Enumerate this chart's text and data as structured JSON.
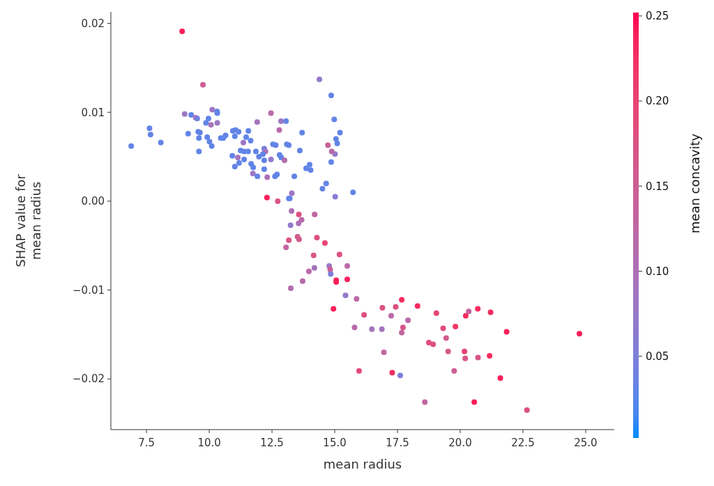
{
  "chart_data": {
    "type": "scatter",
    "xlabel": "mean radius",
    "ylabel": "SHAP value for\nmean radius",
    "clabel": "mean concavity",
    "xlim": [
      6.08,
      26.14
    ],
    "ylim": [
      -0.0257,
      0.0213
    ],
    "xticks": [
      7.5,
      {
        "value": 10,
        "label": "10.0"
      },
      12.5,
      {
        "value": 15,
        "label": "15.0"
      },
      17.5,
      {
        "value": 20,
        "label": "20.0"
      },
      22.5,
      {
        "value": 25,
        "label": "25.0"
      }
    ],
    "yticks": [
      {
        "value": -0.02,
        "label": "−0.02"
      },
      {
        "value": -0.01,
        "label": "−0.01"
      },
      {
        "value": 0,
        "label": "0.00"
      },
      0.01,
      0.02
    ],
    "clim": [
      0.002,
      0.252
    ],
    "cticks": [
      0.05,
      {
        "value": 0.1,
        "label": "0.10"
      },
      0.15,
      {
        "value": 0.2,
        "label": "0.20"
      },
      0.25
    ],
    "grid": false,
    "x": [
      9.75,
      14.39,
      14.86,
      9.02,
      9.28,
      9.46,
      9.52,
      10.12,
      10.31,
      10.32,
      9.97,
      9.87,
      10.07,
      10.32,
      7.62,
      7.66,
      8.07,
      6.89,
      9.16,
      9.56,
      9.63,
      9.59,
      9.59,
      9.92,
      10.01,
      10.1,
      10.46,
      10.56,
      10.65,
      10.94,
      11.05,
      11.17,
      11.02,
      11.56,
      11.47,
      11.65,
      11.36,
      11.25,
      11.39,
      11.55,
      10.92,
      11.14,
      11.02,
      11.19,
      11.39,
      11.67,
      11.75,
      11.74,
      11.92,
      11.86,
      11.98,
      12.19,
      12.24,
      12.14,
      12.19,
      12.19,
      12.46,
      12.31,
      12.62,
      12.7,
      12.8,
      12.87,
      13.0,
      12.46,
      11.91,
      12.86,
      13.06,
      12.79,
      12.54,
      12.65,
      13.09,
      13.17,
      13.61,
      13.7,
      13.39,
      13.86,
      14.0,
      14.04,
      14.66,
      14.51,
      13.29,
      13.21,
      13.17,
      12.3,
      12.73,
      15.02,
      15.01,
      14.73,
      14.88,
      14.86,
      14.98,
      15.21,
      15.05,
      15.1,
      8.92,
      15.73,
      13.28,
      13.57,
      13.68,
      13.56,
      14.2,
      13.24,
      13.17,
      13.52,
      13.58,
      13.06,
      14.29,
      14.61,
      14.16,
      15.19,
      14.78,
      14.82,
      14.84,
      15.5,
      14.19,
      13.97,
      13.72,
      13.25,
      15.06,
      15.06,
      15.5,
      15.43,
      15.87,
      14.95,
      16.17,
      16.9,
      17.43,
      17.67,
      18.3,
      17.25,
      17.92,
      19.05,
      15.79,
      16.48,
      16.88,
      17.72,
      17.67,
      19.32,
      19.81,
      19.44,
      20.22,
      20.34,
      20.7,
      21.21,
      21.85,
      24.75,
      18.75,
      18.92,
      19.52,
      20.17,
      20.2,
      20.71,
      21.17,
      16.96,
      15.97,
      17.29,
      17.61,
      19.76,
      21.6,
      18.59,
      20.56,
      22.66
    ],
    "values": [
      0.0131,
      0.0137,
      0.0119,
      0.0098,
      0.0097,
      0.0094,
      0.0093,
      0.0103,
      0.0101,
      0.0099,
      0.0093,
      0.0088,
      0.0086,
      0.0088,
      0.0082,
      0.0075,
      0.0066,
      0.0062,
      0.0076,
      0.0078,
      0.0077,
      0.0071,
      0.0056,
      0.0072,
      0.0067,
      0.0062,
      0.0071,
      0.0071,
      0.0074,
      0.0079,
      0.008,
      0.0078,
      0.0073,
      0.0079,
      0.0072,
      0.0068,
      0.0066,
      0.0057,
      0.0056,
      0.0056,
      0.0051,
      0.0049,
      0.0039,
      0.0043,
      0.0047,
      0.0042,
      0.0038,
      0.0031,
      0.0028,
      0.0056,
      0.005,
      0.0059,
      0.0056,
      0.0053,
      0.0046,
      0.0036,
      0.0047,
      0.0027,
      0.0028,
      0.003,
      0.0052,
      0.0049,
      0.0046,
      0.0099,
      0.0089,
      0.009,
      0.009,
      0.008,
      0.0064,
      0.0063,
      0.0064,
      0.0063,
      0.0057,
      0.0077,
      0.0028,
      0.0037,
      0.0041,
      0.0035,
      0.002,
      0.0014,
      0.0009,
      0.0003,
      0.0003,
      0.0004,
      0.0,
      0.0005,
      0.0053,
      0.0063,
      0.0056,
      0.0044,
      0.0092,
      0.0077,
      0.007,
      0.0065,
      0.0191,
      0.001,
      -0.0011,
      -0.0015,
      -0.0021,
      -0.0025,
      -0.0015,
      -0.0027,
      -0.0044,
      -0.004,
      -0.0043,
      -0.0052,
      -0.0041,
      -0.0047,
      -0.0061,
      -0.006,
      -0.0073,
      -0.0077,
      -0.0082,
      -0.0073,
      -0.0075,
      -0.0079,
      -0.009,
      -0.0098,
      -0.0089,
      -0.0091,
      -0.0088,
      -0.0106,
      -0.011,
      -0.0121,
      -0.0128,
      -0.012,
      -0.0119,
      -0.0111,
      -0.0118,
      -0.0129,
      -0.0134,
      -0.0126,
      -0.0142,
      -0.0144,
      -0.0144,
      -0.0142,
      -0.0148,
      -0.0143,
      -0.0141,
      -0.0154,
      -0.0129,
      -0.0124,
      -0.0121,
      -0.0125,
      -0.0147,
      -0.0149,
      -0.0159,
      -0.0161,
      -0.0169,
      -0.0169,
      -0.0177,
      -0.0176,
      -0.0174,
      -0.017,
      -0.0191,
      -0.0193,
      -0.0196,
      -0.0191,
      -0.0199,
      -0.0226,
      -0.0226,
      -0.0235
    ],
    "cvalues": [
      0.15,
      0.07,
      0.03,
      0.08,
      0.03,
      0.11,
      0.04,
      0.08,
      0.03,
      0.03,
      0.03,
      0.03,
      0.09,
      0.08,
      0.03,
      0.03,
      0.03,
      0.03,
      0.03,
      0.03,
      0.03,
      0.03,
      0.03,
      0.03,
      0.03,
      0.03,
      0.03,
      0.03,
      0.03,
      0.03,
      0.03,
      0.03,
      0.03,
      0.03,
      0.03,
      0.03,
      0.08,
      0.03,
      0.03,
      0.03,
      0.03,
      0.09,
      0.03,
      0.03,
      0.03,
      0.03,
      0.03,
      0.08,
      0.03,
      0.03,
      0.03,
      0.04,
      0.1,
      0.03,
      0.03,
      0.03,
      0.07,
      0.1,
      0.03,
      0.03,
      0.03,
      0.03,
      0.11,
      0.12,
      0.09,
      0.08,
      0.03,
      0.12,
      0.03,
      0.03,
      0.03,
      0.03,
      0.03,
      0.03,
      0.03,
      0.03,
      0.03,
      0.03,
      0.03,
      0.03,
      0.08,
      0.03,
      0.03,
      0.24,
      0.17,
      0.06,
      0.07,
      0.14,
      0.12,
      0.03,
      0.03,
      0.03,
      0.03,
      0.03,
      0.24,
      0.03,
      0.1,
      0.18,
      0.12,
      0.1,
      0.13,
      0.07,
      0.17,
      0.16,
      0.16,
      0.13,
      0.18,
      0.2,
      0.17,
      0.18,
      0.08,
      0.15,
      0.05,
      0.12,
      0.09,
      0.12,
      0.12,
      0.11,
      0.24,
      0.24,
      0.24,
      0.07,
      0.12,
      0.24,
      0.18,
      0.18,
      0.18,
      0.23,
      0.23,
      0.12,
      0.12,
      0.2,
      0.12,
      0.09,
      0.09,
      0.17,
      0.13,
      0.19,
      0.22,
      0.16,
      0.23,
      0.14,
      0.23,
      0.23,
      0.24,
      0.24,
      0.19,
      0.18,
      0.16,
      0.2,
      0.17,
      0.17,
      0.23,
      0.13,
      0.19,
      0.23,
      0.05,
      0.15,
      0.24,
      0.13,
      0.24,
      0.18
    ]
  }
}
